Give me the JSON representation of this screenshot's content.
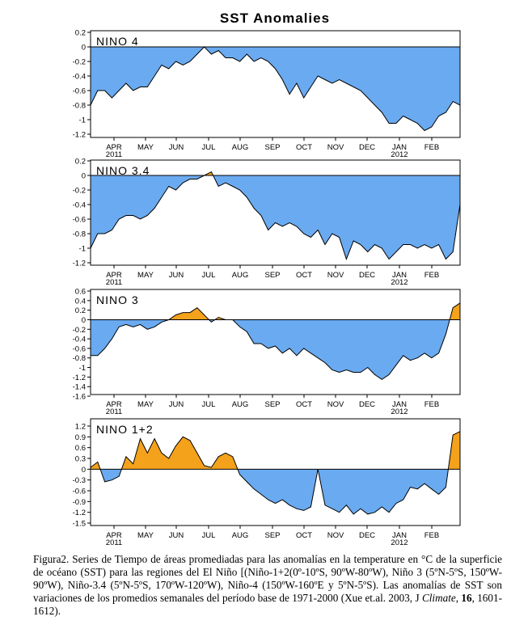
{
  "figure_title": "SST Anomalies",
  "colors": {
    "negative": "#6aaaf0",
    "positive": "#f4a21c",
    "line": "#000000",
    "background": "#ffffff"
  },
  "caption": {
    "part1": "Figura2. Series de Tiempo de áreas promediadas para las anomalías en la temperature en °C  de la superficie de océano (SST) para las regiones del El Niño [(Niño-1+2(0º-10ºS, 90ºW-80ºW), Niño 3 (5ºN-5ºS, 150ºW-90ºW), Niño-3.4 (5ºN-5ºS, 170ºW-120ºW), Niño-4 (150ºW-160ºE y 5ºN-5ºS). Las anomalías de SST son variaciones de los promedios semanales del período  base de 1971-2000 (Xue et.al. 2003, J ",
    "journal": "Climate",
    "sep1": ", ",
    "volume": "16",
    "part2": ", 1601-1612)."
  },
  "chart_data": [
    {
      "type": "area",
      "label": "NINO 4",
      "ylim": [
        -1.3,
        0.2
      ],
      "yticks": [
        "0.2",
        "0",
        "-0.2",
        "-0.4",
        "-0.6",
        "-0.8",
        "-1",
        "-1.2"
      ],
      "ytick_values": [
        0.2,
        0,
        -0.2,
        -0.4,
        -0.6,
        -0.8,
        -1,
        -1.2
      ],
      "xticks": [
        "APR",
        "MAY",
        "JUN",
        "JUL",
        "AUG",
        "SEP",
        "OCT",
        "NOV",
        "DEC",
        "JAN",
        "FEB"
      ],
      "year_labels": [
        {
          "month": "APR",
          "text": "2011"
        },
        {
          "month": "JAN",
          "text": "2012"
        }
      ],
      "baseline": 0,
      "weeks": 52,
      "values": [
        -0.8,
        -0.6,
        -0.6,
        -0.7,
        -0.6,
        -0.5,
        -0.6,
        -0.55,
        -0.55,
        -0.4,
        -0.25,
        -0.3,
        -0.2,
        -0.25,
        -0.2,
        -0.1,
        0.0,
        -0.1,
        -0.05,
        -0.15,
        -0.15,
        -0.2,
        -0.1,
        -0.2,
        -0.15,
        -0.2,
        -0.3,
        -0.45,
        -0.65,
        -0.5,
        -0.7,
        -0.55,
        -0.4,
        -0.45,
        -0.5,
        -0.45,
        -0.5,
        -0.55,
        -0.6,
        -0.7,
        -0.8,
        -0.9,
        -1.05,
        -1.05,
        -0.95,
        -1.0,
        -1.05,
        -1.15,
        -1.1,
        -0.95,
        -0.9,
        -0.75,
        -0.8
      ]
    },
    {
      "type": "area",
      "label": "NINO 3.4",
      "ylim": [
        -1.3,
        0.2
      ],
      "yticks": [
        "0.2",
        "0",
        "-0.2",
        "-0.4",
        "-0.6",
        "-0.8",
        "-1",
        "-1.2"
      ],
      "ytick_values": [
        0.2,
        0,
        -0.2,
        -0.4,
        -0.6,
        -0.8,
        -1,
        -1.2
      ],
      "xticks": [
        "APR",
        "MAY",
        "JUN",
        "JUL",
        "AUG",
        "SEP",
        "OCT",
        "NOV",
        "DEC",
        "JAN",
        "FEB"
      ],
      "year_labels": [
        {
          "month": "APR",
          "text": "2011"
        },
        {
          "month": "JAN",
          "text": "2012"
        }
      ],
      "baseline": 0,
      "weeks": 52,
      "values": [
        -1.0,
        -0.8,
        -0.8,
        -0.75,
        -0.6,
        -0.55,
        -0.55,
        -0.6,
        -0.55,
        -0.45,
        -0.3,
        -0.15,
        -0.2,
        -0.1,
        -0.05,
        -0.05,
        0.0,
        0.05,
        -0.15,
        -0.1,
        -0.15,
        -0.2,
        -0.3,
        -0.45,
        -0.55,
        -0.75,
        -0.65,
        -0.7,
        -0.65,
        -0.7,
        -0.8,
        -0.85,
        -0.75,
        -0.95,
        -0.8,
        -0.85,
        -1.15,
        -0.9,
        -0.95,
        -1.05,
        -0.95,
        -1.0,
        -1.15,
        -1.05,
        -0.95,
        -0.95,
        -1.0,
        -0.95,
        -1.0,
        -0.95,
        -1.15,
        -1.05,
        -0.4
      ]
    },
    {
      "type": "area",
      "label": "NINO 3",
      "ylim": [
        -1.6,
        0.6
      ],
      "yticks": [
        "0.6",
        "0.4",
        "0.2",
        "0",
        "-0.2",
        "-0.4",
        "-0.6",
        "-0.8",
        "-1",
        "-1.2",
        "-1.4",
        "-1.6"
      ],
      "ytick_values": [
        0.6,
        0.4,
        0.2,
        0,
        -0.2,
        -0.4,
        -0.6,
        -0.8,
        -1,
        -1.2,
        -1.4,
        -1.6
      ],
      "xticks": [
        "APR",
        "MAY",
        "JUN",
        "JUL",
        "AUG",
        "SEP",
        "OCT",
        "NOV",
        "DEC",
        "JAN",
        "FEB"
      ],
      "year_labels": [
        {
          "month": "APR",
          "text": "2011"
        },
        {
          "month": "JAN",
          "text": "2012"
        }
      ],
      "baseline": 0,
      "weeks": 52,
      "values": [
        -0.75,
        -0.75,
        -0.6,
        -0.4,
        -0.15,
        -0.1,
        -0.15,
        -0.1,
        -0.2,
        -0.15,
        -0.05,
        0.0,
        0.1,
        0.15,
        0.15,
        0.25,
        0.1,
        -0.05,
        0.05,
        0.0,
        0.0,
        -0.15,
        -0.25,
        -0.5,
        -0.5,
        -0.6,
        -0.55,
        -0.7,
        -0.6,
        -0.75,
        -0.6,
        -0.7,
        -0.8,
        -0.9,
        -1.05,
        -1.1,
        -1.05,
        -1.1,
        -1.1,
        -1.0,
        -1.15,
        -1.25,
        -1.15,
        -0.95,
        -0.75,
        -0.85,
        -0.8,
        -0.7,
        -0.8,
        -0.7,
        -0.3,
        0.25,
        0.35
      ]
    },
    {
      "type": "area",
      "label": "NINO 1+2",
      "ylim": [
        -1.5,
        1.2
      ],
      "yticks": [
        "1.2",
        "0.9",
        "0.6",
        "0.3",
        "0",
        "-0.3",
        "-0.6",
        "-0.9",
        "-1.2",
        "-1.5"
      ],
      "ytick_values": [
        1.2,
        0.9,
        0.6,
        0.3,
        0,
        -0.3,
        -0.6,
        -0.9,
        -1.2,
        -1.5
      ],
      "xticks": [
        "APR",
        "MAY",
        "JUN",
        "JUL",
        "AUG",
        "SEP",
        "OCT",
        "NOV",
        "DEC",
        "JAN",
        "FEB"
      ],
      "year_labels": [
        {
          "month": "APR",
          "text": "2011"
        },
        {
          "month": "JAN",
          "text": "2012"
        }
      ],
      "baseline": 0,
      "weeks": 52,
      "values": [
        0.05,
        0.2,
        -0.35,
        -0.3,
        -0.2,
        0.35,
        0.15,
        0.85,
        0.45,
        0.85,
        0.45,
        0.3,
        0.65,
        0.9,
        0.8,
        0.45,
        0.1,
        0.05,
        0.35,
        0.45,
        0.35,
        -0.15,
        -0.35,
        -0.55,
        -0.7,
        -0.85,
        -0.95,
        -0.85,
        -1.0,
        -1.1,
        -1.15,
        -1.05,
        0.0,
        -1.0,
        -1.1,
        -1.2,
        -1.0,
        -1.25,
        -1.1,
        -1.25,
        -1.2,
        -1.05,
        -1.2,
        -0.95,
        -0.85,
        -0.5,
        -0.55,
        -0.4,
        -0.55,
        -0.7,
        -0.5,
        0.95,
        1.05
      ]
    }
  ]
}
